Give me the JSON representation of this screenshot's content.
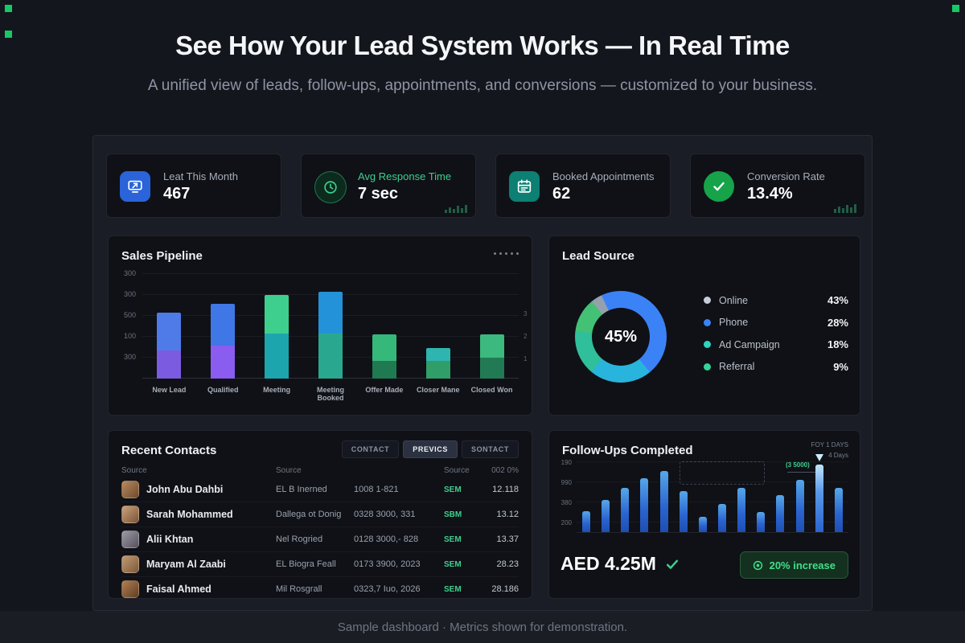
{
  "page": {
    "title": "See How Your Lead System Works — In Real Time",
    "subtitle": "A unified view of leads, follow-ups, appointments, and conversions — customized to your business.",
    "footer": "Sample dashboard · Metrics shown for demonstration.",
    "accent_green": "#17c964"
  },
  "kpis": [
    {
      "label": "Leat This Month",
      "value": "467",
      "icon": "screen-arrow-icon",
      "accent": "#2b63d9"
    },
    {
      "label": "Avg Response Time",
      "value": "7 sec",
      "icon": "clock-icon",
      "accent": "#3ecf8e"
    },
    {
      "label": "Booked Appointments",
      "value": "62",
      "icon": "calendar-icon",
      "accent": "#0d7f73"
    },
    {
      "label": "Conversion Rate",
      "value": "13.4%",
      "icon": "check-icon",
      "accent": "#16a34a"
    }
  ],
  "recent_contacts": {
    "title": "Recent Contacts",
    "tabs": [
      {
        "label": "CONTACT",
        "active": false
      },
      {
        "label": "PREVICS",
        "active": true
      },
      {
        "label": "SONTACT",
        "active": false
      }
    ],
    "headers": [
      "Source",
      "Source",
      "Source",
      "002 0%"
    ],
    "rows": [
      {
        "name": "John Abu Dahbi",
        "company": "EL B Inerned",
        "phone": "1008 1-821",
        "tag": "SEM",
        "value": "12.118",
        "avatar_colors": [
          "#b98a5e",
          "#6e4b2e"
        ]
      },
      {
        "name": "Sarah Mohammed",
        "company": "Dallega ot Donig",
        "phone": "0328 3000, 331",
        "tag": "SBM",
        "value": "13.12",
        "avatar_colors": [
          "#caa27c",
          "#7a5538"
        ]
      },
      {
        "name": "Alii Khtan",
        "company": "Nel Rogried",
        "phone": "0128 3000,- 828",
        "tag": "SEM",
        "value": "13.37",
        "avatar_colors": [
          "#9d9aa6",
          "#55525e"
        ]
      },
      {
        "name": "Maryam Al Zaabi",
        "company": "EL Biogra Feall",
        "phone": "0173 3900, 2023",
        "tag": "SEM",
        "value": "28.23",
        "avatar_colors": [
          "#c29a74",
          "#7c5a3a"
        ]
      },
      {
        "name": "Faisal Ahmed",
        "company": "Mil Rosgrall",
        "phone": "0323,7 Iuo, 2026",
        "tag": "SEM",
        "value": "28.186",
        "avatar_colors": [
          "#b07f52",
          "#5f3f24"
        ]
      }
    ]
  },
  "chart_data": [
    {
      "id": "sales_pipeline",
      "type": "bar",
      "stacked": true,
      "title": "Sales Pipeline",
      "categories": [
        "New Lead",
        "Qualified",
        "Meeting",
        "Meeting Booked",
        "Offer Made",
        "Closer Mane",
        "Closed Won"
      ],
      "series": [
        {
          "name": "bottom-segment",
          "values": [
            80,
            95,
            130,
            130,
            50,
            50,
            60
          ]
        },
        {
          "name": "top-segment",
          "values": [
            110,
            120,
            110,
            120,
            78,
            38,
            68
          ]
        }
      ],
      "segment_colors": [
        [
          "#7b5ce0",
          "#4f7be8"
        ],
        [
          "#8a5cf0",
          "#3f77e6"
        ],
        [
          "#1da5ad",
          "#3ecf8e"
        ],
        [
          "#2aa88f",
          "#2492d8"
        ],
        [
          "#1f7a52",
          "#35b87a"
        ],
        [
          "#2f9e68",
          "#2fb5b0"
        ],
        [
          "#227a55",
          "#3cb97e"
        ]
      ],
      "ylim": [
        0,
        300
      ],
      "y_tick_labels": [
        "300",
        "300",
        "500",
        "100",
        "300"
      ],
      "right_tick_labels": [
        "3",
        "2",
        "1"
      ],
      "grid": true,
      "legend_position": "none"
    },
    {
      "id": "lead_source",
      "type": "pie",
      "title": "Lead Source",
      "center_label": "45%",
      "slices": [
        {
          "label": "Online",
          "pct": 43,
          "color": "#c7cdd6"
        },
        {
          "label": "Phone",
          "pct": 28,
          "color": "#3b82f6"
        },
        {
          "label": "Ad Campaign",
          "pct": 18,
          "color": "#2dd4bf"
        },
        {
          "label": "Referral",
          "pct": 9,
          "color": "#34d399"
        }
      ],
      "arcs": [
        {
          "color": "#3b82f6",
          "pct": 46
        },
        {
          "color": "#28b4dc",
          "pct": 22
        },
        {
          "color": "#2fbf9b",
          "pct": 16
        },
        {
          "color": "#43c174",
          "pct": 12
        },
        {
          "color": "#95a0ad",
          "pct": 4
        }
      ]
    },
    {
      "id": "follow_ups",
      "type": "bar",
      "title": "Follow-Ups Completed",
      "values": [
        30,
        46,
        62,
        76,
        86,
        58,
        22,
        40,
        62,
        28,
        52,
        74,
        95,
        62
      ],
      "ylim": [
        0,
        100
      ],
      "y_tick_labels": [
        "190",
        "990",
        "380",
        "200"
      ],
      "annotation": "(3 5000)",
      "range_label_top": "FOY 1 DAYS",
      "range_label_bottom": "4 Days",
      "marker_bar_index": 12,
      "total_label": "AED 4.25M",
      "badge_label": "20% increase"
    }
  ]
}
